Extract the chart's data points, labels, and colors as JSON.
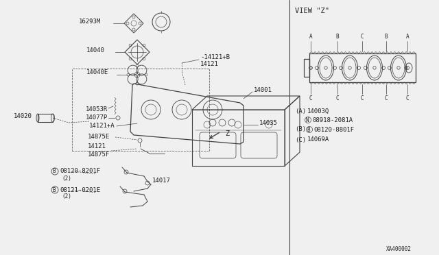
{
  "bg_color": "#f0f0f0",
  "line_color": "#404040",
  "text_color": "#202020",
  "fig_width": 6.4,
  "fig_height": 3.72,
  "dpi": 100,
  "diagram_ref": "XA400002",
  "view_z_title": "VIEW \"Z\"",
  "view_z_labels_top": [
    "A",
    "B",
    "C",
    "B",
    "A"
  ],
  "view_z_labels_bottom": [
    "C",
    "C",
    "C",
    "C",
    "C"
  ],
  "font_size_tiny": 5.5,
  "font_size_small": 6.5,
  "font_size_medium": 7.5
}
